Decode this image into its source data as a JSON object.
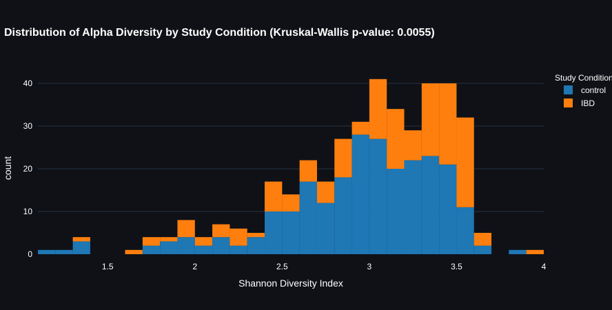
{
  "chart_data": {
    "type": "bar",
    "barmode": "stack",
    "title": "Distribution of Alpha Diversity by Study Condition (Kruskal-Wallis p-value: 0.0055)",
    "xlabel": "Shannon Diversity Index",
    "ylabel": "count",
    "xlim": [
      1.1,
      4.0
    ],
    "ylim": [
      0,
      45
    ],
    "bin_width": 0.1,
    "x_ticks": [
      "1.5",
      "2",
      "2.5",
      "3",
      "3.5",
      "4"
    ],
    "y_ticks": [
      "0",
      "10",
      "20",
      "30",
      "40"
    ],
    "grid": true,
    "legend_title": "Study Condition",
    "legend_position": "right",
    "bin_starts": [
      1.1,
      1.2,
      1.3,
      1.4,
      1.5,
      1.6,
      1.7,
      1.8,
      1.9,
      2.0,
      2.1,
      2.2,
      2.3,
      2.4,
      2.5,
      2.6,
      2.7,
      2.8,
      2.9,
      3.0,
      3.1,
      3.2,
      3.3,
      3.4,
      3.5,
      3.6,
      3.7,
      3.8,
      3.9
    ],
    "series": [
      {
        "name": "control",
        "color": "#1f77b4",
        "values": [
          1,
          1,
          3,
          0,
          0,
          0,
          2,
          3,
          4,
          2,
          4,
          2,
          4,
          10,
          10,
          17,
          12,
          18,
          28,
          27,
          20,
          22,
          23,
          21,
          11,
          2,
          0,
          1,
          0
        ]
      },
      {
        "name": "IBD",
        "color": "#ff7f0e",
        "values": [
          0,
          0,
          1,
          0,
          0,
          1,
          2,
          1,
          4,
          2,
          3,
          4,
          1,
          7,
          4,
          5,
          5,
          9,
          3,
          14,
          14,
          7,
          17,
          19,
          21,
          3,
          0,
          0,
          1
        ]
      }
    ]
  }
}
